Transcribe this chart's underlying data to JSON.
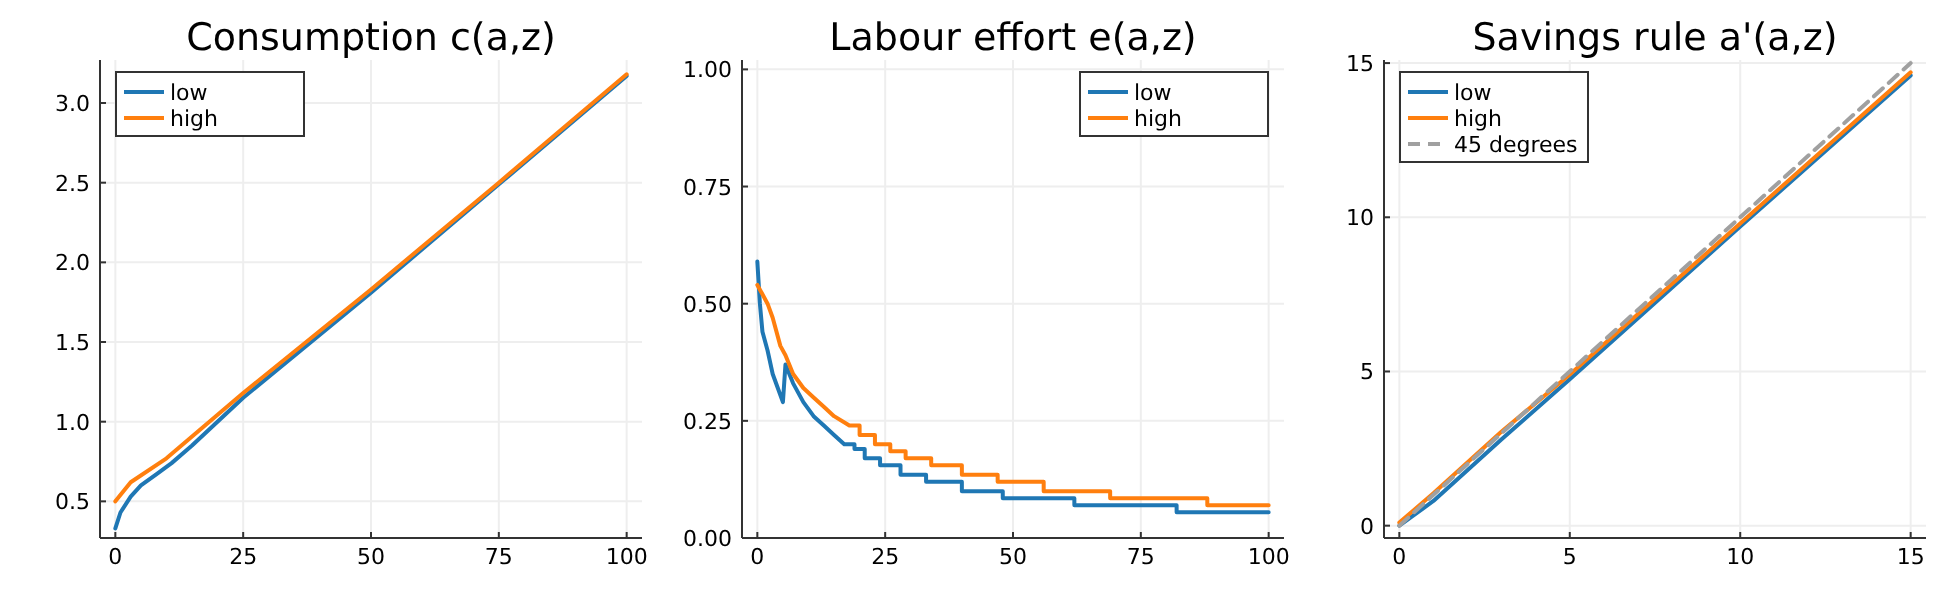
{
  "chart_data": [
    {
      "type": "line",
      "title": "Consumption c(a,z)",
      "xlim": [
        -3,
        103
      ],
      "xticks": [
        0,
        25,
        50,
        75,
        100
      ],
      "ylim": [
        0.27,
        3.27
      ],
      "yticks": [
        {
          "value": 0.5,
          "label": "0.5"
        },
        {
          "value": 1,
          "label": "1.0"
        },
        {
          "value": 1.5,
          "label": "1.5"
        },
        {
          "value": 2,
          "label": "2.0"
        },
        {
          "value": 2.5,
          "label": "2.5"
        },
        {
          "value": 3,
          "label": "3.0"
        }
      ],
      "grid": true,
      "legend": "top left",
      "line_style": "solid",
      "marker": "none",
      "series": [
        {
          "name": "low",
          "color": "#1f77b4",
          "x": [
            0,
            1,
            3,
            5,
            8,
            11,
            15,
            25,
            50,
            75,
            100
          ],
          "values": [
            0.33,
            0.43,
            0.53,
            0.6,
            0.67,
            0.74,
            0.85,
            1.15,
            1.81,
            2.49,
            3.17
          ]
        },
        {
          "name": "high",
          "color": "#ff7f0e",
          "x": [
            0,
            3,
            10,
            25,
            50,
            75,
            100
          ],
          "values": [
            0.5,
            0.62,
            0.77,
            1.18,
            1.83,
            2.5,
            3.18
          ]
        }
      ]
    },
    {
      "type": "line",
      "title": "Labour effort e(a,z)",
      "xlim": [
        -3,
        103
      ],
      "xticks": [
        0,
        25,
        50,
        75,
        100
      ],
      "ylim": [
        0,
        1.02
      ],
      "yticks": [
        {
          "value": 0,
          "label": "0.00"
        },
        {
          "value": 0.25,
          "label": "0.25"
        },
        {
          "value": 0.5,
          "label": "0.50"
        },
        {
          "value": 0.75,
          "label": "0.75"
        },
        {
          "value": 1,
          "label": "1.00"
        }
      ],
      "grid": true,
      "legend": "top right",
      "line_style": "solid",
      "marker": "none",
      "series": [
        {
          "name": "low",
          "color": "#1f77b4",
          "x": [
            0,
            0.5,
            1,
            2,
            3,
            4,
            5,
            5.5,
            7,
            9,
            11,
            13,
            15,
            17,
            19,
            19,
            21,
            21,
            24,
            24,
            28,
            28,
            33,
            33,
            40,
            40,
            48,
            48,
            62,
            62,
            82,
            82,
            100
          ],
          "values": [
            0.59,
            0.5,
            0.44,
            0.4,
            0.35,
            0.32,
            0.29,
            0.37,
            0.33,
            0.29,
            0.26,
            0.24,
            0.22,
            0.2,
            0.2,
            0.19,
            0.19,
            0.17,
            0.17,
            0.155,
            0.155,
            0.135,
            0.135,
            0.12,
            0.12,
            0.1,
            0.1,
            0.085,
            0.085,
            0.07,
            0.07,
            0.055,
            0.055
          ]
        },
        {
          "name": "high",
          "color": "#ff7f0e",
          "x": [
            0,
            1,
            2,
            3,
            4.5,
            5.5,
            7,
            9,
            11,
            13,
            15,
            18,
            20,
            20,
            23,
            23,
            26,
            26,
            29,
            29,
            34,
            34,
            40,
            40,
            47,
            47,
            56,
            56,
            69,
            69,
            88,
            88,
            100
          ],
          "values": [
            0.54,
            0.52,
            0.5,
            0.47,
            0.41,
            0.39,
            0.35,
            0.32,
            0.3,
            0.28,
            0.26,
            0.24,
            0.24,
            0.22,
            0.22,
            0.2,
            0.2,
            0.185,
            0.185,
            0.17,
            0.17,
            0.155,
            0.155,
            0.135,
            0.135,
            0.12,
            0.12,
            0.1,
            0.1,
            0.085,
            0.085,
            0.07,
            0.07
          ]
        }
      ]
    },
    {
      "type": "line",
      "title": "Savings rule a'(a,z)",
      "xlim": [
        -0.45,
        15.45
      ],
      "xticks": [
        0,
        5,
        10,
        15
      ],
      "ylim": [
        -0.4,
        15.1
      ],
      "yticks": [
        0,
        5,
        10,
        15
      ],
      "grid": true,
      "legend": "top left",
      "line_style": "solid",
      "marker": "none",
      "series": [
        {
          "name": "low",
          "color": "#1f77b4",
          "x": [
            0,
            1,
            3,
            5,
            10,
            15
          ],
          "values": [
            0,
            0.8,
            2.8,
            4.75,
            9.7,
            14.6
          ]
        },
        {
          "name": "high",
          "color": "#ff7f0e",
          "x": [
            0,
            1,
            3,
            5,
            10,
            15
          ],
          "values": [
            0.1,
            1.05,
            3.05,
            4.9,
            9.8,
            14.7
          ]
        },
        {
          "name": "45 degrees",
          "color": "#a0a0a0",
          "line_style": "dashed",
          "x": [
            0,
            15
          ],
          "values": [
            0,
            15
          ]
        }
      ]
    }
  ]
}
